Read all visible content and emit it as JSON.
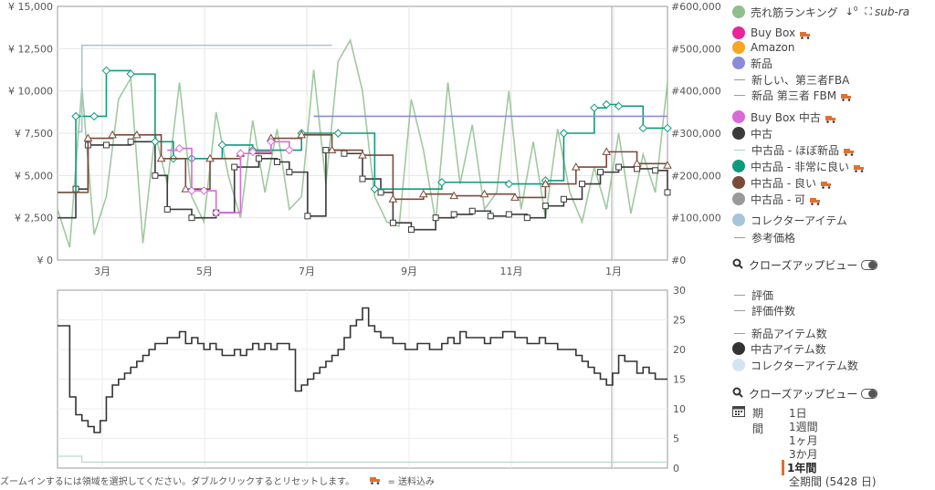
{
  "chart_data": [
    {
      "type": "line",
      "title": "",
      "x_ticks": [
        "3月",
        "5月",
        "7月",
        "9月",
        "11月",
        "1月"
      ],
      "y_left": {
        "label": "",
        "ticks": [
          "¥ 0",
          "¥ 2,500",
          "¥ 5,000",
          "¥ 7,500",
          "¥ 10,000",
          "¥ 12,500",
          "¥ 15,000"
        ],
        "range": [
          0,
          15000
        ]
      },
      "y_right": {
        "label": "",
        "ticks": [
          "#0",
          "#100,000",
          "#200,000",
          "#300,000",
          "#400,000",
          "#500,000",
          "#600,000"
        ],
        "range": [
          0,
          600000
        ]
      },
      "x_range": [
        "2月上旬",
        "2月上旬(翌年)"
      ],
      "grid": true,
      "series": [
        {
          "name": "売れ筋ランキング",
          "axis": "right",
          "color": "#8fbf8f",
          "x": [
            0,
            2,
            4,
            6,
            8,
            10,
            12,
            14,
            16,
            18,
            20,
            22,
            24,
            26,
            28,
            30,
            32,
            34,
            36,
            38,
            40,
            42,
            44,
            46,
            48,
            50,
            52,
            54,
            56,
            58,
            60,
            62,
            64,
            66,
            68,
            70,
            72,
            74,
            76,
            78,
            80,
            82,
            84,
            86,
            88,
            90,
            92,
            94,
            96,
            98,
            100
          ],
          "values": [
            120000,
            30000,
            410000,
            60000,
            150000,
            380000,
            430000,
            40000,
            300000,
            180000,
            420000,
            150000,
            90000,
            350000,
            200000,
            100000,
            330000,
            160000,
            310000,
            120000,
            150000,
            450000,
            180000,
            470000,
            520000,
            400000,
            150000,
            90000,
            80000,
            380000,
            260000,
            90000,
            420000,
            180000,
            320000,
            120000,
            160000,
            400000,
            120000,
            280000,
            100000,
            310000,
            160000,
            90000,
            220000,
            120000,
            300000,
            110000,
            250000,
            160000,
            420000
          ]
        },
        {
          "name": "中古",
          "axis": "left",
          "color": "#3a3a3a",
          "x": [
            0,
            3,
            5,
            8,
            12,
            16,
            18,
            22,
            26,
            29,
            33,
            36,
            38,
            41,
            44,
            47,
            50,
            53,
            55,
            58,
            62,
            65,
            68,
            71,
            74,
            77,
            80,
            83,
            86,
            89,
            92,
            95,
            98,
            100
          ],
          "values": [
            2500,
            4200,
            6800,
            6800,
            7000,
            5000,
            3000,
            2500,
            2800,
            5500,
            6000,
            5800,
            5200,
            2600,
            6500,
            6300,
            4800,
            4000,
            2200,
            1800,
            2500,
            2700,
            2900,
            2600,
            2700,
            2500,
            3200,
            3600,
            4500,
            5200,
            5500,
            5400,
            5300,
            4000
          ]
        },
        {
          "name": "中古品 - 非常に良い",
          "axis": "left",
          "color": "#0e9b7d",
          "x": [
            0,
            3,
            6,
            8,
            12,
            16,
            19,
            22,
            27,
            32,
            40,
            46,
            52,
            63,
            74,
            80,
            83,
            88,
            90,
            92,
            96,
            100
          ],
          "values": [
            4000,
            8500,
            8500,
            11200,
            11000,
            7000,
            6000,
            6000,
            6800,
            6500,
            7500,
            7500,
            4200,
            4600,
            4500,
            4700,
            7500,
            9000,
            9200,
            9100,
            7800,
            7800
          ]
        },
        {
          "name": "中古品 - 良い",
          "axis": "left",
          "color": "#7a4a3a",
          "x": [
            0,
            5,
            9,
            13,
            17,
            21,
            25,
            30,
            35,
            40,
            45,
            50,
            55,
            60,
            65,
            70,
            75,
            80,
            85,
            90,
            95,
            100
          ],
          "values": [
            4000,
            7200,
            7400,
            7400,
            6000,
            4200,
            6000,
            6300,
            7200,
            7400,
            6500,
            6200,
            3600,
            3900,
            3800,
            3900,
            3700,
            4500,
            5500,
            6400,
            5700,
            5600
          ]
        },
        {
          "name": "Buy Box 中古",
          "axis": "left",
          "color": "#d86bd8",
          "x": [
            18,
            20,
            22,
            24,
            26,
            30,
            32,
            35,
            38
          ],
          "values": [
            6500,
            6600,
            4100,
            4100,
            2800,
            6300,
            6400,
            7000,
            6500
          ]
        },
        {
          "name": "新品 第三者 FBM",
          "axis": "left",
          "color": "#a7c4d8",
          "x": [
            3,
            4,
            4,
            12,
            20,
            30,
            40,
            45
          ],
          "values": [
            7600,
            7600,
            12700,
            12700,
            12700,
            12700,
            12700,
            12700
          ]
        },
        {
          "name": "新品",
          "axis": "left",
          "color": "#8b8bdb",
          "x": [
            42,
            55,
            61,
            100
          ],
          "values": [
            8500,
            8500,
            8500,
            8500
          ]
        }
      ]
    },
    {
      "type": "line",
      "title": "",
      "x_ticks": [
        "3月",
        "5月",
        "7月",
        "9月",
        "11月",
        "1月"
      ],
      "y_right": {
        "label": "",
        "ticks": [
          "0",
          "5",
          "10",
          "15",
          "20",
          "25",
          "30"
        ],
        "range": [
          0,
          30
        ]
      },
      "grid": true,
      "series": [
        {
          "name": "中古アイテム数",
          "axis": "right",
          "color": "#333333",
          "x": [
            0,
            1,
            2,
            3,
            4,
            5,
            6,
            7,
            8,
            9,
            10,
            11,
            12,
            13,
            14,
            15,
            16,
            17,
            18,
            19,
            20,
            21,
            22,
            23,
            24,
            25,
            26,
            27,
            28,
            29,
            30,
            31,
            32,
            33,
            34,
            35,
            36,
            37,
            38,
            39,
            40,
            41,
            42,
            43,
            44,
            45,
            46,
            47,
            48,
            49,
            50,
            51,
            52,
            53,
            54,
            55,
            56,
            57,
            58,
            59,
            60,
            61,
            62,
            63,
            64,
            65,
            66,
            67,
            68,
            69,
            70,
            71,
            72,
            73,
            74,
            75,
            76,
            77,
            78,
            79,
            80,
            81,
            82,
            83,
            84,
            85,
            86,
            87,
            88,
            89,
            90,
            91,
            92,
            93,
            94,
            95,
            96,
            97,
            98,
            99,
            100
          ],
          "values": [
            24,
            24,
            12,
            9,
            8,
            7,
            6,
            8,
            12,
            14,
            15,
            16,
            17,
            18,
            19,
            20,
            21,
            21,
            22,
            22,
            23,
            21,
            22,
            21,
            20,
            21,
            20,
            19,
            19,
            20,
            19,
            20,
            21,
            20,
            21,
            20,
            21,
            21,
            20,
            13,
            14,
            15,
            16,
            17,
            18,
            19,
            20,
            22,
            24,
            25,
            27,
            24,
            23,
            22,
            22,
            21,
            21,
            20,
            20,
            21,
            21,
            20,
            20,
            21,
            22,
            21,
            23,
            22,
            22,
            22,
            21,
            22,
            22,
            23,
            23,
            22,
            22,
            21,
            21,
            22,
            21,
            21,
            20,
            20,
            20,
            19,
            18,
            17,
            16,
            15,
            14,
            16,
            19,
            18,
            18,
            16,
            17,
            16,
            15,
            15,
            15
          ]
        },
        {
          "name": "新品アイテム数",
          "axis": "right",
          "color": "#b8dbc9",
          "x": [
            0,
            3,
            4,
            100
          ],
          "values": [
            2,
            2,
            1,
            1
          ]
        }
      ]
    }
  ],
  "legend": {
    "rank_label": "売れ筋ランキング",
    "sort_icon": "sort-icon",
    "sub_label": "sub-ra",
    "buybox": "Buy Box",
    "amazon": "Amazon",
    "new": "新品",
    "new_fba": "新しい、第三者FBA",
    "new_fbm": "新品 第三者 FBM",
    "buybox_used": "Buy Box 中古",
    "used": "中古",
    "used_like_new": "中古品 - ほぼ新品",
    "used_very_good": "中古品 - 非常に良い",
    "used_good": "中古品 - 良い",
    "used_acceptable": "中古品 - 可",
    "collectible": "コレクターアイテム",
    "reference": "参考価格",
    "closeup1": "クローズアップビュー",
    "rating": "評価",
    "rating_count": "評価件数",
    "new_count": "新品アイテム数",
    "used_count": "中古アイテム数",
    "collectible_count": "コレクターアイテム数",
    "closeup2": "クローズアップビュー",
    "colors": {
      "rank": "#8fbf8f",
      "buybox": "#e8259b",
      "amazon": "#f5a623",
      "new": "#8b8bdb",
      "buybox_used": "#d86bd8",
      "used": "#3a3a3a",
      "used_like_new": "#9ed0c8",
      "used_very_good": "#0e9b7d",
      "used_good": "#7a4a3a",
      "used_acceptable": "#999999",
      "collectible": "#a7c4d8",
      "used_count": "#333333",
      "collectible_count": "#d4e4f5"
    }
  },
  "period": {
    "label": "期間",
    "options": [
      "1日",
      "1週間",
      "1ヶ月",
      "3か月",
      "1年間",
      "全期間 (5428 日)"
    ],
    "active": "1年間"
  },
  "footer": {
    "hint": "ズームインするには領域を選択してください。ダブルクリックするとリセットします。",
    "shipping_legend": "= 送料込み",
    "line2": "…"
  }
}
